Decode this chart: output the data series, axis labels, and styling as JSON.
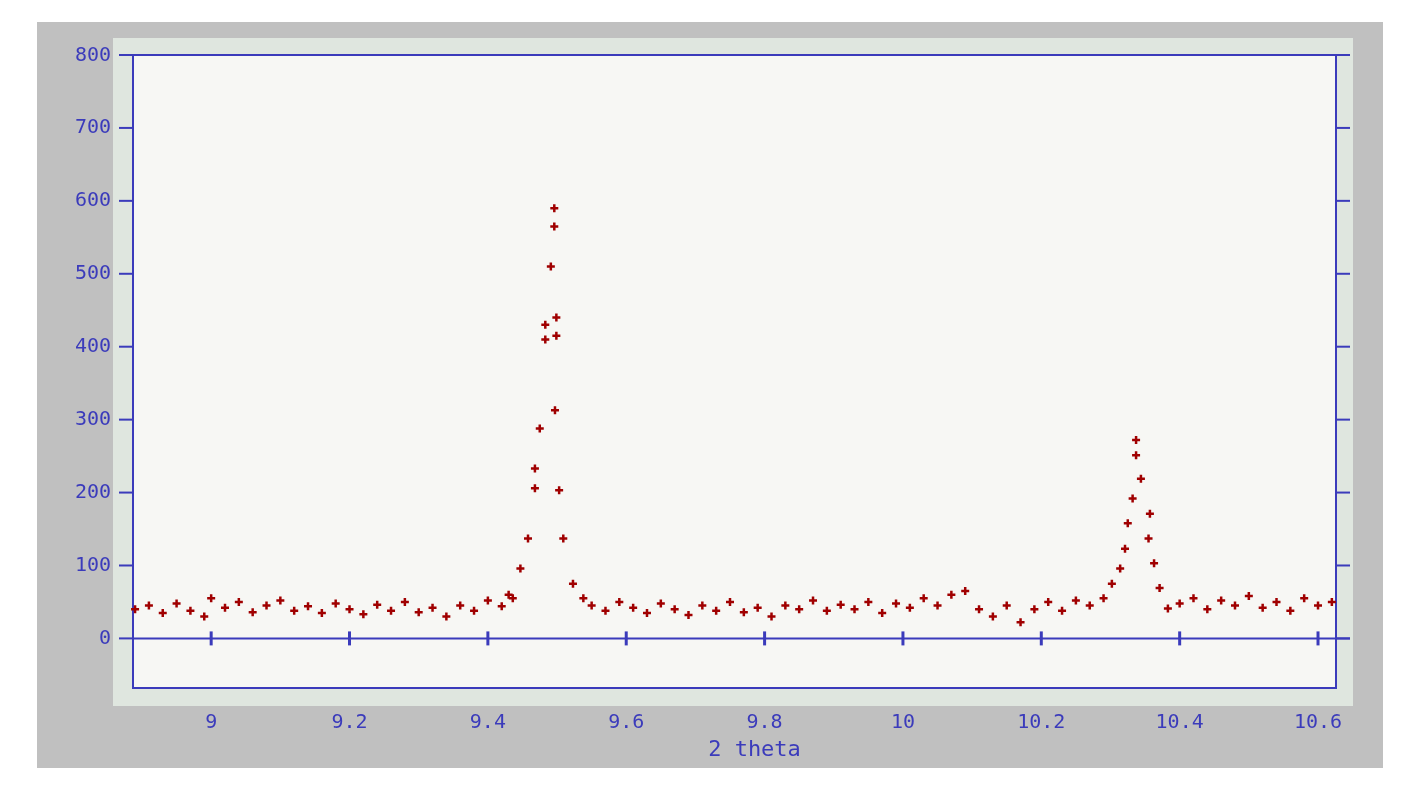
{
  "chart_data": {
    "type": "scatter",
    "xlabel": "2 theta",
    "xlim": [
      8.887,
      10.626
    ],
    "ylim": [
      -68,
      800
    ],
    "xticks": [
      9,
      9.2,
      9.4,
      9.6,
      9.8,
      10,
      10.2,
      10.4,
      10.6
    ],
    "yticks": [
      0,
      100,
      200,
      300,
      400,
      500,
      600,
      700,
      800
    ],
    "grid": false,
    "marker": "cross",
    "ref_lines": [
      {
        "axis": "y",
        "value": 0,
        "color": "#3b3bbb"
      }
    ],
    "series": [
      {
        "color": "#a00000",
        "x": [
          8.89,
          8.91,
          8.93,
          8.95,
          8.97,
          8.99,
          9.0,
          9.02,
          9.04,
          9.06,
          9.08,
          9.1,
          9.12,
          9.14,
          9.16,
          9.18,
          9.2,
          9.22,
          9.24,
          9.26,
          9.28,
          9.3,
          9.32,
          9.34,
          9.36,
          9.38,
          9.4,
          9.42,
          9.43,
          9.436,
          9.447,
          9.458,
          9.468,
          9.468,
          9.475,
          9.483,
          9.483,
          9.491,
          9.496,
          9.496,
          9.497,
          9.499,
          9.499,
          9.503,
          9.509,
          9.523,
          9.538,
          9.55,
          9.57,
          9.59,
          9.61,
          9.63,
          9.65,
          9.67,
          9.69,
          9.71,
          9.73,
          9.75,
          9.77,
          9.79,
          9.81,
          9.83,
          9.85,
          9.87,
          9.89,
          9.91,
          9.93,
          9.95,
          9.97,
          9.99,
          10.01,
          10.03,
          10.05,
          10.07,
          10.09,
          10.11,
          10.13,
          10.15,
          10.17,
          10.19,
          10.21,
          10.23,
          10.25,
          10.27,
          10.29,
          10.302,
          10.314,
          10.321,
          10.325,
          10.332,
          10.337,
          10.337,
          10.344,
          10.355,
          10.357,
          10.363,
          10.371,
          10.383,
          10.4,
          10.42,
          10.44,
          10.46,
          10.48,
          10.5,
          10.52,
          10.54,
          10.56,
          10.58,
          10.6,
          10.62
        ],
        "values": [
          40,
          45,
          35,
          48,
          38,
          30,
          55,
          42,
          50,
          36,
          45,
          52,
          38,
          44,
          35,
          48,
          40,
          33,
          46,
          38,
          50,
          36,
          42,
          30,
          45,
          38,
          52,
          44,
          60,
          55,
          96,
          137,
          233,
          206,
          288,
          430,
          410,
          510,
          590,
          565,
          313,
          440,
          415,
          203,
          137,
          75,
          55,
          45,
          38,
          50,
          42,
          35,
          48,
          40,
          32,
          45,
          38,
          50,
          36,
          42,
          30,
          45,
          40,
          52,
          38,
          46,
          40,
          50,
          35,
          48,
          42,
          55,
          45,
          60,
          65,
          40,
          30,
          45,
          22,
          40,
          50,
          38,
          52,
          45,
          55,
          75,
          96,
          123,
          158,
          192,
          272,
          251,
          219,
          137,
          171,
          103,
          69,
          41,
          48,
          55,
          40,
          52,
          45,
          58,
          42,
          50,
          38,
          55,
          45,
          50
        ]
      }
    ]
  }
}
